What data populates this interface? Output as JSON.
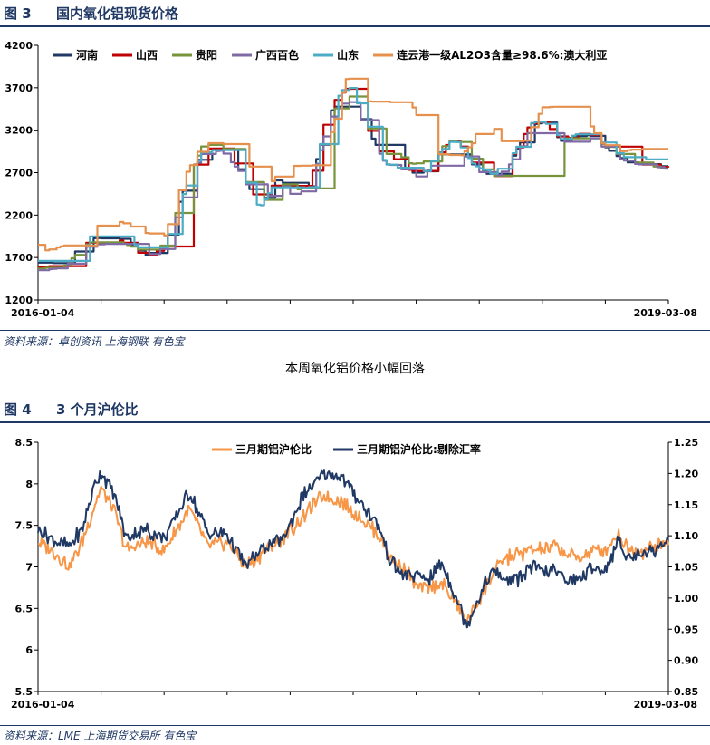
{
  "figures": [
    {
      "number": "图 3",
      "title": "国内氧化铝现货价格",
      "source": "资料来源：卓创资讯 上海钢联   有色宝"
    },
    {
      "number": "图 4",
      "title": "3 个月沪伦比",
      "source": "资料来源：LME   上海期货交易所   有色宝"
    }
  ],
  "caption": "本周氧化铝价格小幅回落",
  "chart_data": [
    {
      "type": "line",
      "title": "国内氧化铝现货价格",
      "x_labels": [
        "2016-01-04",
        "2019-03-08"
      ],
      "ylim": [
        1200,
        4200
      ],
      "yticks": [
        1200,
        1700,
        2200,
        2700,
        3200,
        3700,
        4200
      ],
      "legend_position": "top",
      "series": [
        {
          "name": "河南",
          "color": "#1f3864",
          "x": [
            0,
            0.04,
            0.08,
            0.13,
            0.17,
            0.2,
            0.23,
            0.26,
            0.29,
            0.32,
            0.35,
            0.38,
            0.4,
            0.43,
            0.46,
            0.49,
            0.52,
            0.55,
            0.57,
            0.59,
            0.61,
            0.63,
            0.66,
            0.69,
            0.72,
            0.75,
            0.78,
            0.8,
            0.83,
            0.86,
            0.88,
            0.91,
            0.94,
            0.97,
            1
          ],
          "y": [
            1640,
            1630,
            1930,
            1920,
            1730,
            1840,
            2500,
            2960,
            2980,
            2720,
            2300,
            2650,
            2480,
            2540,
            3400,
            3620,
            3220,
            2840,
            2850,
            2700,
            2700,
            2880,
            3080,
            2780,
            2650,
            2860,
            3260,
            3290,
            3070,
            3150,
            3130,
            2930,
            2800,
            2800,
            2760
          ]
        },
        {
          "name": "山西",
          "color": "#c00000",
          "x": [
            0,
            0.04,
            0.08,
            0.13,
            0.17,
            0.2,
            0.23,
            0.26,
            0.29,
            0.32,
            0.35,
            0.38,
            0.4,
            0.43,
            0.46,
            0.49,
            0.52,
            0.55,
            0.57,
            0.59,
            0.61,
            0.63,
            0.66,
            0.69,
            0.72,
            0.75,
            0.78,
            0.8,
            0.83,
            0.86,
            0.88,
            0.91,
            0.94,
            0.97,
            1
          ],
          "y": [
            1590,
            1610,
            1900,
            1900,
            1700,
            1830,
            2550,
            2980,
            2990,
            2740,
            2320,
            2650,
            2500,
            2560,
            3480,
            3700,
            3240,
            2830,
            2870,
            2720,
            2720,
            2900,
            3120,
            2800,
            2630,
            2880,
            3280,
            3300,
            3080,
            3160,
            3140,
            2940,
            2820,
            2780,
            2760
          ]
        },
        {
          "name": "贵阳",
          "color": "#77933c",
          "x": [
            0,
            0.04,
            0.08,
            0.13,
            0.17,
            0.2,
            0.23,
            0.26,
            0.29,
            0.32,
            0.35,
            0.38,
            0.4,
            0.43,
            0.46,
            0.49,
            0.52,
            0.55,
            0.57,
            0.59,
            0.61,
            0.63,
            0.66,
            0.69,
            0.72,
            0.75,
            0.78,
            0.8,
            0.83,
            0.86,
            0.88,
            0.91,
            0.94,
            0.97,
            1
          ],
          "y": [
            1570,
            1600,
            1880,
            1880,
            1760,
            1860,
            2480,
            3030,
            3020,
            2730,
            2280,
            2620,
            2480,
            2540,
            3350,
            3650,
            3260,
            2920,
            2920,
            2800,
            2820,
            2960,
            3100,
            2850,
            2640,
            2830,
            3230,
            3270,
            3090,
            3170,
            3110,
            2950,
            2830,
            2780,
            2740
          ]
        },
        {
          "name": "广西百色",
          "color": "#7f6aa6",
          "x": [
            0,
            0.04,
            0.08,
            0.13,
            0.17,
            0.2,
            0.23,
            0.26,
            0.29,
            0.32,
            0.35,
            0.38,
            0.4,
            0.43,
            0.46,
            0.49,
            0.52,
            0.55,
            0.57,
            0.59,
            0.61,
            0.63,
            0.66,
            0.69,
            0.72,
            0.75,
            0.78,
            0.8,
            0.83,
            0.86,
            0.88,
            0.91,
            0.94,
            0.97,
            1
          ],
          "y": [
            1550,
            1580,
            1850,
            1870,
            1720,
            1820,
            2420,
            2940,
            2960,
            2700,
            2260,
            2600,
            2450,
            2500,
            3320,
            3580,
            3220,
            2800,
            2780,
            2650,
            2660,
            2840,
            3050,
            2760,
            2600,
            2820,
            3210,
            3250,
            3050,
            3130,
            3100,
            2900,
            2810,
            2780,
            2740
          ]
        },
        {
          "name": "山东",
          "color": "#4bacc6",
          "x": [
            0,
            0.04,
            0.08,
            0.13,
            0.17,
            0.2,
            0.23,
            0.26,
            0.29,
            0.32,
            0.35,
            0.38,
            0.4,
            0.43,
            0.46,
            0.49,
            0.52,
            0.55,
            0.57,
            0.59,
            0.61,
            0.63,
            0.66,
            0.69,
            0.72,
            0.75,
            0.78,
            0.8,
            0.83,
            0.86,
            0.88,
            0.91,
            0.94,
            0.97,
            1
          ],
          "y": [
            1660,
            1660,
            1950,
            1950,
            1770,
            1860,
            2460,
            2960,
            2970,
            2720,
            2280,
            2640,
            2470,
            2530,
            3420,
            3760,
            3300,
            2800,
            2760,
            2680,
            2700,
            2900,
            3110,
            2790,
            2680,
            2890,
            3280,
            3320,
            3090,
            3170,
            3140,
            2960,
            2840,
            2860,
            2720
          ]
        },
        {
          "name": "连云港一级AL2O3含量≥98.6%:澳大利亚",
          "color": "#e5904d",
          "x": [
            0,
            0.01,
            0.05,
            0.09,
            0.13,
            0.17,
            0.2,
            0.23,
            0.26,
            0.29,
            0.33,
            0.36,
            0.39,
            0.41,
            0.45,
            0.49,
            0.52,
            0.55,
            0.59,
            0.63,
            0.67,
            0.69,
            0.71,
            0.73,
            0.75,
            0.77,
            0.8,
            0.83,
            0.86,
            0.89,
            0.92,
            0.95,
            1
          ],
          "y": [
            1850,
            1780,
            1860,
            2070,
            2120,
            1990,
            1960,
            2640,
            3040,
            3060,
            2830,
            2500,
            2780,
            2780,
            2790,
            3850,
            3540,
            3530,
            3530,
            2920,
            2900,
            3060,
            3520,
            3070,
            3070,
            3070,
            3470,
            3480,
            3470,
            3060,
            2950,
            2980,
            2980
          ]
        }
      ]
    },
    {
      "type": "line",
      "title": "3 个月沪伦比",
      "x_labels": [
        "2016-01-04",
        "2019-03-08"
      ],
      "ylim_left": [
        5.5,
        8.5
      ],
      "yticks_left": [
        5.5,
        6,
        6.5,
        7,
        7.5,
        8,
        8.5
      ],
      "ylim_right": [
        0.85,
        1.25
      ],
      "yticks_right": [
        0.85,
        0.9,
        0.95,
        1.0,
        1.05,
        1.1,
        1.15,
        1.2,
        1.25
      ],
      "legend_position": "top",
      "series": [
        {
          "name": "三月期铝沪伦比",
          "color": "#f79646",
          "axis": "left",
          "x": [
            0,
            0.03,
            0.05,
            0.07,
            0.09,
            0.1,
            0.12,
            0.14,
            0.17,
            0.2,
            0.24,
            0.27,
            0.3,
            0.33,
            0.36,
            0.39,
            0.42,
            0.45,
            0.48,
            0.51,
            0.54,
            0.56,
            0.58,
            0.6,
            0.62,
            0.64,
            0.66,
            0.68,
            0.7,
            0.72,
            0.74,
            0.76,
            0.78,
            0.8,
            0.82,
            0.84,
            0.86,
            0.88,
            0.9,
            0.92,
            0.94,
            0.96,
            0.98,
            1
          ],
          "y": [
            7.3,
            7.15,
            7.0,
            7.3,
            7.75,
            7.95,
            7.7,
            7.2,
            7.3,
            7.2,
            7.7,
            7.25,
            7.3,
            7.0,
            7.2,
            7.35,
            7.6,
            7.85,
            7.8,
            7.6,
            7.4,
            7.1,
            7.0,
            6.75,
            6.75,
            6.8,
            6.6,
            6.35,
            6.6,
            6.9,
            7.1,
            7.15,
            7.2,
            7.2,
            7.25,
            7.15,
            7.1,
            7.2,
            7.2,
            7.4,
            7.2,
            7.2,
            7.25,
            7.3
          ]
        },
        {
          "name": "三月期铝沪伦比:剔除汇率",
          "color": "#1f3864",
          "axis": "left",
          "x": [
            0,
            0.03,
            0.05,
            0.07,
            0.09,
            0.1,
            0.12,
            0.14,
            0.17,
            0.2,
            0.24,
            0.27,
            0.3,
            0.33,
            0.36,
            0.39,
            0.42,
            0.45,
            0.48,
            0.51,
            0.54,
            0.56,
            0.58,
            0.6,
            0.62,
            0.64,
            0.66,
            0.68,
            0.7,
            0.72,
            0.74,
            0.76,
            0.78,
            0.8,
            0.82,
            0.84,
            0.86,
            0.88,
            0.9,
            0.92,
            0.94,
            0.96,
            0.98,
            1
          ],
          "y": [
            7.45,
            7.3,
            7.25,
            7.45,
            8.0,
            8.15,
            7.9,
            7.35,
            7.45,
            7.35,
            7.9,
            7.4,
            7.4,
            7.0,
            7.25,
            7.35,
            7.85,
            8.1,
            8.1,
            7.8,
            7.5,
            7.05,
            6.9,
            6.9,
            6.85,
            7.05,
            6.7,
            6.3,
            6.65,
            6.95,
            6.85,
            6.85,
            7.0,
            6.95,
            6.95,
            6.85,
            6.85,
            7.0,
            6.95,
            7.3,
            7.1,
            7.2,
            7.2,
            7.35
          ]
        }
      ]
    }
  ]
}
